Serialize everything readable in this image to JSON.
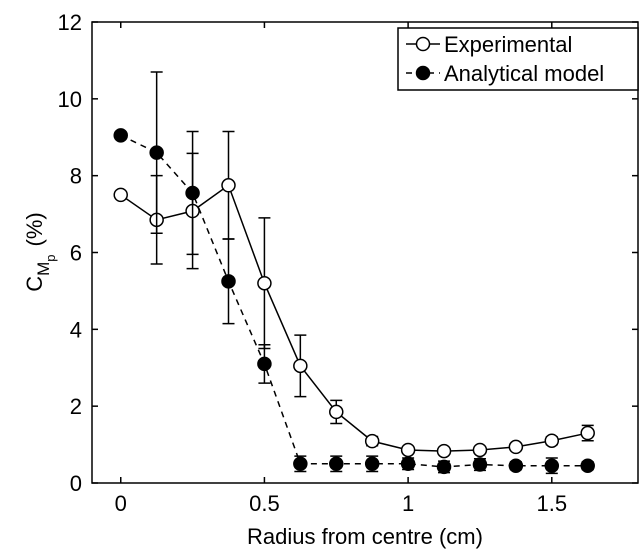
{
  "chart_data": {
    "type": "line",
    "xlabel": "Radius from centre (cm)",
    "ylabel_parts": [
      "C",
      "M",
      "p",
      "(%)"
    ],
    "x": [
      0,
      0.125,
      0.25,
      0.375,
      0.5,
      0.625,
      0.75,
      0.875,
      1.0,
      1.125,
      1.25,
      1.375,
      1.5,
      1.625
    ],
    "series": [
      {
        "name": "Experimental",
        "color": "#000000",
        "dash": false,
        "marker_fill": "#ffffff",
        "values": [
          7.5,
          6.85,
          7.08,
          7.75,
          5.2,
          3.05,
          1.85,
          1.09,
          0.86,
          0.83,
          0.86,
          0.94,
          1.1,
          1.3
        ],
        "errors": [
          null,
          1.15,
          1.5,
          1.4,
          1.7,
          0.8,
          0.3,
          0.12,
          0.06,
          0.06,
          0.06,
          0.08,
          0.1,
          0.2
        ]
      },
      {
        "name": "Analytical model",
        "color": "#000000",
        "dash": true,
        "marker_fill": "#000000",
        "values": [
          9.05,
          8.6,
          7.55,
          5.25,
          3.1,
          0.5,
          0.5,
          0.5,
          0.5,
          0.42,
          0.48,
          0.45,
          0.45,
          0.45
        ],
        "errors": [
          null,
          2.1,
          1.6,
          1.1,
          0.5,
          0.2,
          0.2,
          0.2,
          0.15,
          0.15,
          0.15,
          0.1,
          0.2,
          0.1
        ]
      }
    ],
    "xlim": [
      -0.1,
      1.8
    ],
    "xticks": [
      0,
      0.5,
      1,
      1.5
    ],
    "ylim": [
      0,
      12
    ],
    "yticks": [
      0,
      2,
      4,
      6,
      8,
      10,
      12
    ],
    "grid": false,
    "legend": "upper right"
  }
}
